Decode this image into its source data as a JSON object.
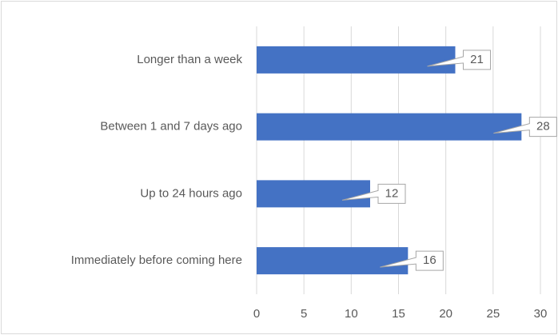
{
  "chart_data": {
    "type": "barh",
    "categories": [
      "Longer than a week",
      "Between 1 and 7 days ago",
      "Up to 24 hours ago",
      "Immediately before coming here"
    ],
    "values": [
      21,
      28,
      12,
      16
    ],
    "color": "#4472c4",
    "xlim": [
      0,
      30
    ],
    "xticks": [
      0,
      5,
      10,
      15,
      20,
      25,
      30
    ],
    "grid": true,
    "data_labels": true
  }
}
